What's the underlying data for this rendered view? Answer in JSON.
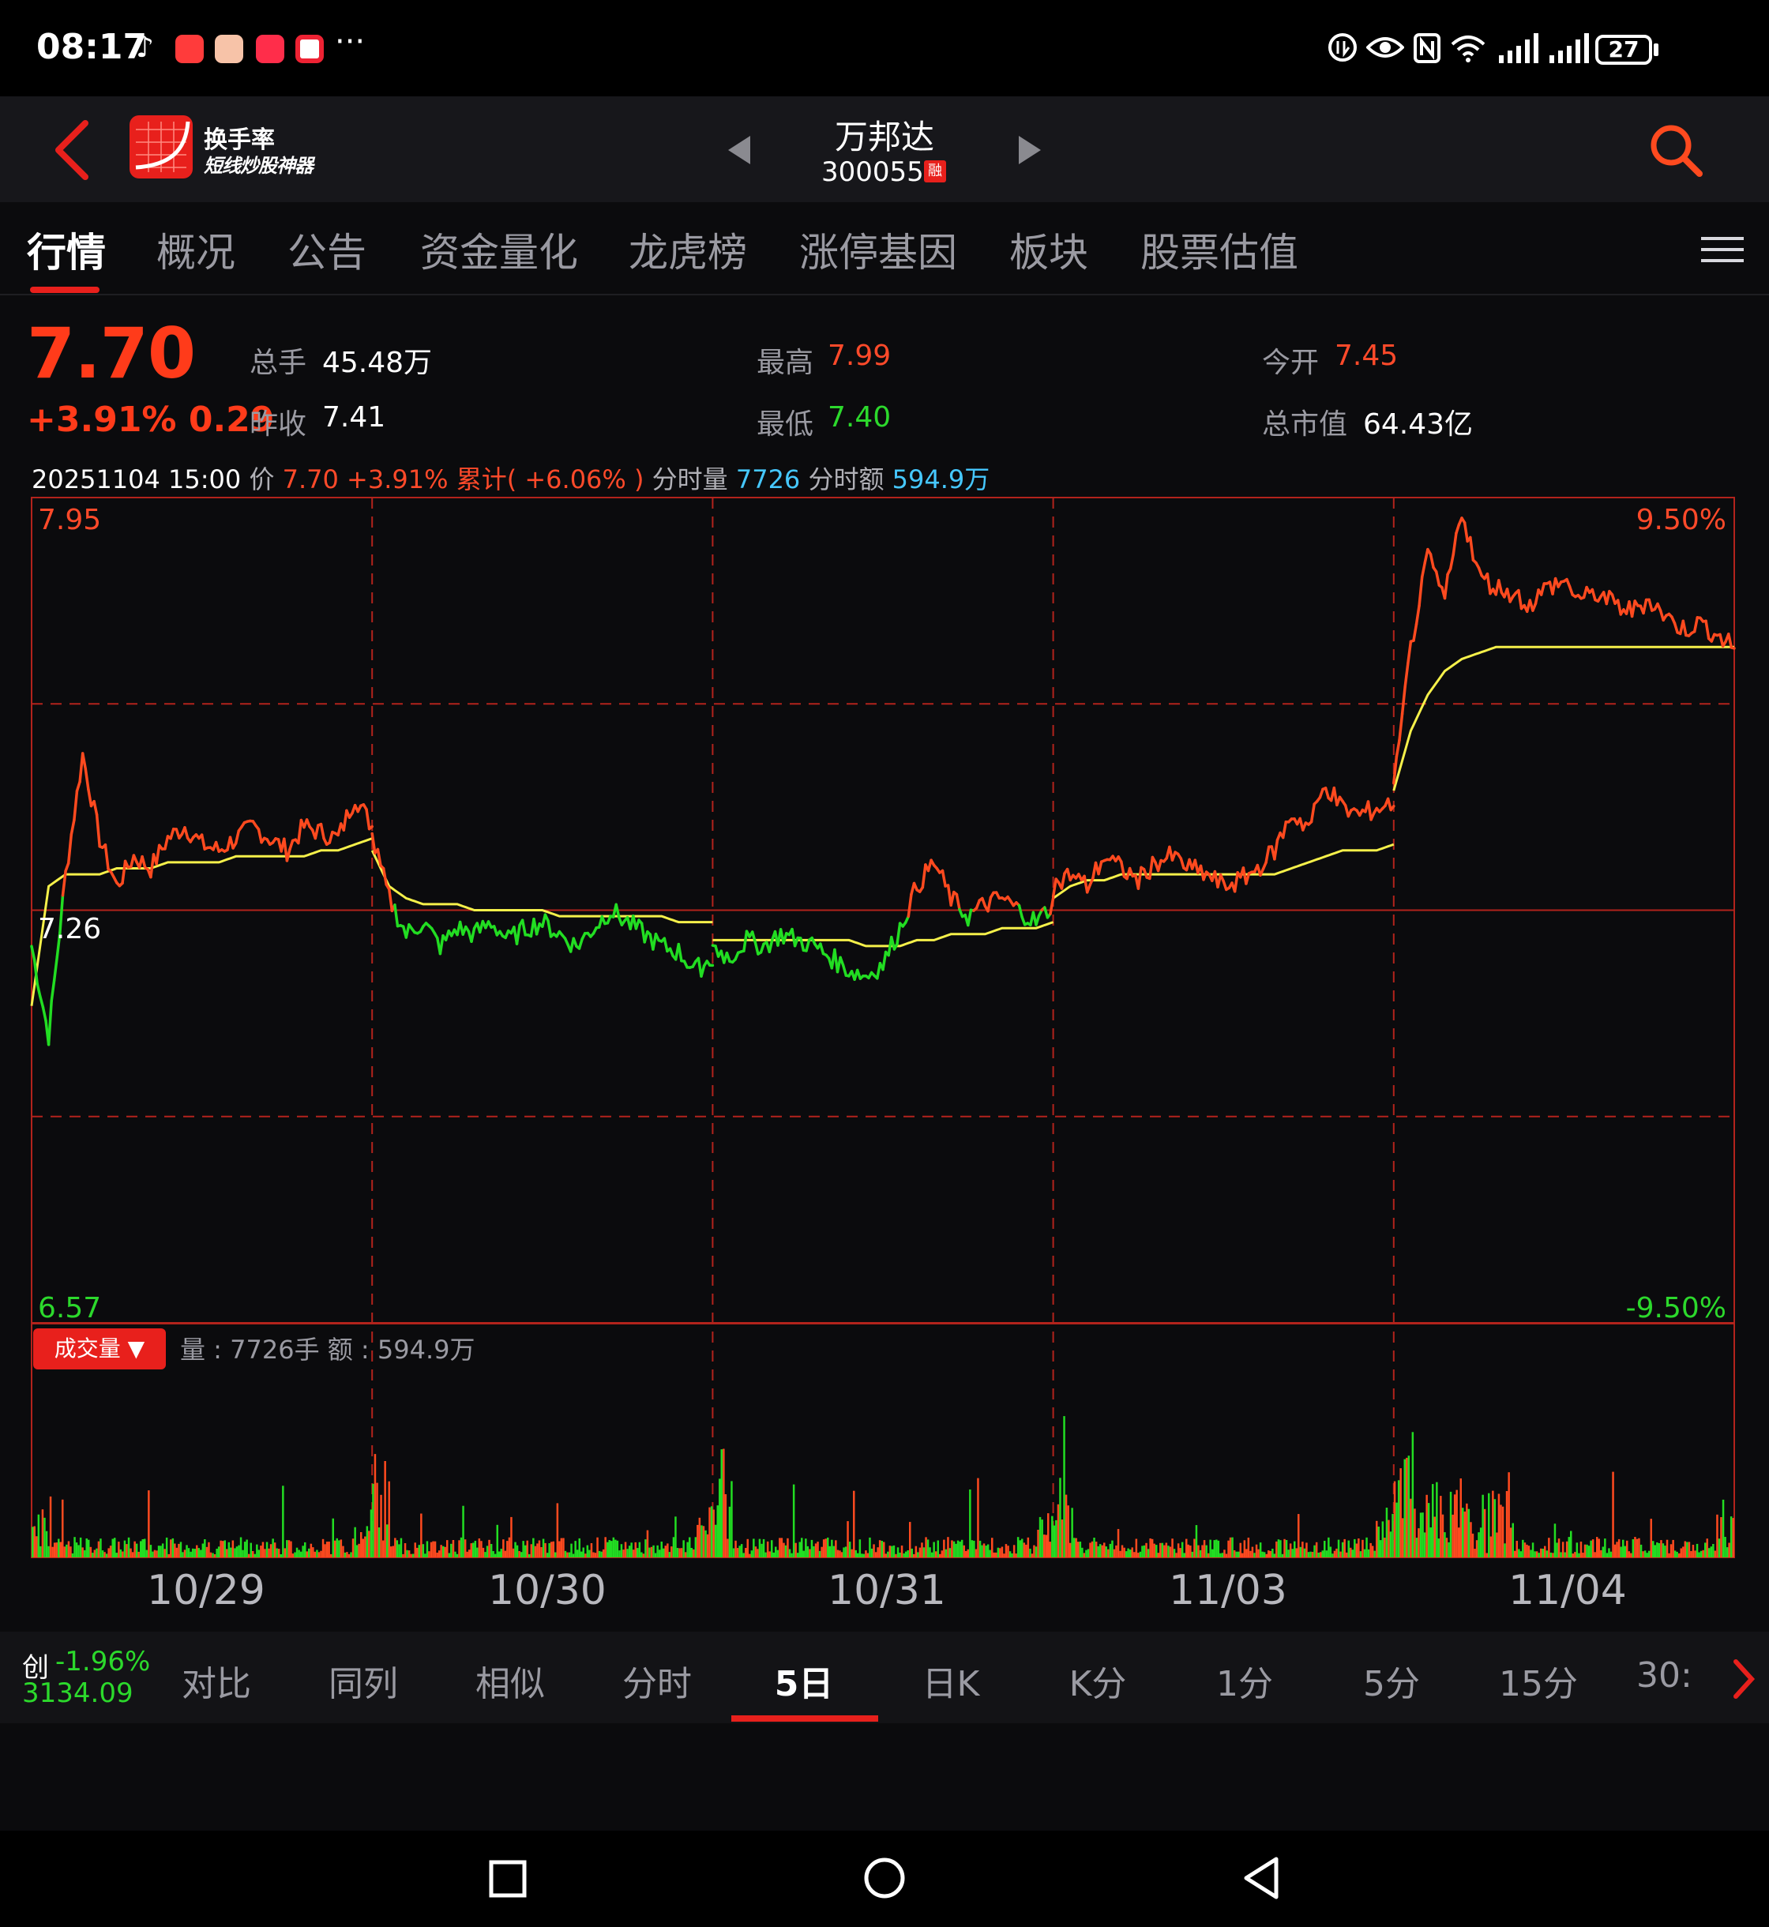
{
  "status_bar": {
    "time": "08:17",
    "more": "···",
    "battery": "27",
    "app_icons": [
      "tiktok-icon",
      "app-red-icon",
      "app-face-icon",
      "app-mail-icon",
      "app-penguin-icon"
    ]
  },
  "header": {
    "logo_name": "换手率",
    "logo_slogan": "短线炒股神器",
    "stock_name": "万邦达",
    "stock_code": "300055",
    "margin_badge": "融",
    "colors": {
      "accent": "#e8201c",
      "background": "#17171b"
    }
  },
  "tabs": [
    {
      "label": "行情",
      "active": true
    },
    {
      "label": "概况"
    },
    {
      "label": "公告"
    },
    {
      "label": "资金量化"
    },
    {
      "label": "龙虎榜"
    },
    {
      "label": "涨停基因"
    },
    {
      "label": "板块"
    },
    {
      "label": "股票估值"
    }
  ],
  "quote": {
    "price": "7.70",
    "change": "+3.91% 0.29",
    "fields": {
      "volume_label": "总手",
      "volume": "45.48万",
      "prev_close_label": "昨收",
      "prev_close": "7.41",
      "high_label": "最高",
      "high": "7.99",
      "low_label": "最低",
      "low": "7.40",
      "open_label": "今开",
      "open": "7.45",
      "market_cap_label": "总市值",
      "market_cap": "64.43亿"
    }
  },
  "info_line": {
    "datetime": "20251104 15:00",
    "price_label": "价",
    "price": "7.70",
    "pct": "+3.91%",
    "cum": "累计( +6.06% )",
    "vol_label": "分时量",
    "vol": "7726",
    "amount_label": "分时额",
    "amount": "594.9万"
  },
  "volume_panel": {
    "button": "成交量 ▼",
    "info": "量 : 7726手  额 : 594.9万"
  },
  "chart_data": {
    "type": "line",
    "title": "",
    "y_range": [
      6.57,
      7.95
    ],
    "ref_price": 7.26,
    "y_labels": {
      "top": "7.95",
      "mid": "7.26",
      "bottom": "6.57",
      "top_pct": "9.50%",
      "bottom_pct": "-9.50%"
    },
    "days": [
      "10/29",
      "10/30",
      "10/31",
      "11/03",
      "11/04"
    ],
    "series": [
      {
        "role": "price",
        "values": [
          [
            7.2,
            7.05,
            7.32,
            7.52,
            7.38,
            7.3,
            7.35,
            7.33,
            7.38,
            7.4,
            7.37,
            7.36,
            7.38,
            7.4,
            7.38,
            7.36,
            7.4,
            7.39,
            7.38,
            7.45,
            7.4
          ],
          [
            7.38,
            7.28,
            7.22,
            7.24,
            7.2,
            7.23,
            7.22,
            7.24,
            7.21,
            7.23,
            7.24,
            7.22,
            7.2,
            7.23,
            7.26,
            7.24,
            7.22,
            7.2,
            7.19,
            7.16,
            7.18
          ],
          [
            7.2,
            7.18,
            7.21,
            7.2,
            7.22,
            7.21,
            7.2,
            7.18,
            7.16,
            7.15,
            7.17,
            7.23,
            7.3,
            7.34,
            7.28,
            7.25,
            7.27,
            7.28,
            7.26,
            7.24,
            7.27
          ],
          [
            7.3,
            7.32,
            7.3,
            7.35,
            7.33,
            7.31,
            7.34,
            7.35,
            7.33,
            7.32,
            7.3,
            7.31,
            7.33,
            7.36,
            7.42,
            7.4,
            7.47,
            7.43,
            7.42,
            7.43,
            7.44
          ],
          [
            7.46,
            7.7,
            7.85,
            7.78,
            7.93,
            7.82,
            7.8,
            7.79,
            7.77,
            7.8,
            7.81,
            7.78,
            7.79,
            7.77,
            7.76,
            7.78,
            7.75,
            7.73,
            7.74,
            7.72,
            7.7
          ]
        ]
      },
      {
        "role": "average",
        "values": [
          [
            7.1,
            7.3,
            7.32,
            7.32,
            7.32,
            7.33,
            7.33,
            7.33,
            7.34,
            7.34,
            7.34,
            7.34,
            7.35,
            7.35,
            7.35,
            7.35,
            7.35,
            7.36,
            7.36,
            7.37,
            7.38
          ],
          [
            7.36,
            7.3,
            7.28,
            7.27,
            7.27,
            7.27,
            7.26,
            7.26,
            7.26,
            7.26,
            7.26,
            7.25,
            7.25,
            7.25,
            7.25,
            7.25,
            7.25,
            7.25,
            7.24,
            7.24,
            7.24
          ],
          [
            7.21,
            7.21,
            7.21,
            7.21,
            7.21,
            7.21,
            7.21,
            7.21,
            7.21,
            7.2,
            7.2,
            7.2,
            7.21,
            7.21,
            7.22,
            7.22,
            7.22,
            7.23,
            7.23,
            7.23,
            7.24
          ],
          [
            7.28,
            7.3,
            7.31,
            7.31,
            7.32,
            7.32,
            7.32,
            7.32,
            7.32,
            7.32,
            7.32,
            7.32,
            7.32,
            7.32,
            7.33,
            7.34,
            7.35,
            7.36,
            7.36,
            7.36,
            7.37
          ],
          [
            7.46,
            7.56,
            7.62,
            7.66,
            7.68,
            7.69,
            7.7,
            7.7,
            7.7,
            7.7,
            7.7,
            7.7,
            7.7,
            7.7,
            7.7,
            7.7,
            7.7,
            7.7,
            7.7,
            7.7,
            7.7
          ]
        ]
      }
    ],
    "colors": {
      "up": "#ff4a1f",
      "down": "#22dd22",
      "average": "#f5f04a",
      "grid": "#b2231c"
    }
  },
  "period_bar": {
    "index_name": "创",
    "index_change": "-1.96%",
    "index_value": "3134.09",
    "items": [
      {
        "label": "对比"
      },
      {
        "label": "同列"
      },
      {
        "label": "相似"
      },
      {
        "label": "分时"
      },
      {
        "label": "5日",
        "active": true
      },
      {
        "label": "日K"
      },
      {
        "label": "K分"
      },
      {
        "label": "1分"
      },
      {
        "label": "5分"
      },
      {
        "label": "15分"
      },
      {
        "label": "30:"
      }
    ]
  }
}
